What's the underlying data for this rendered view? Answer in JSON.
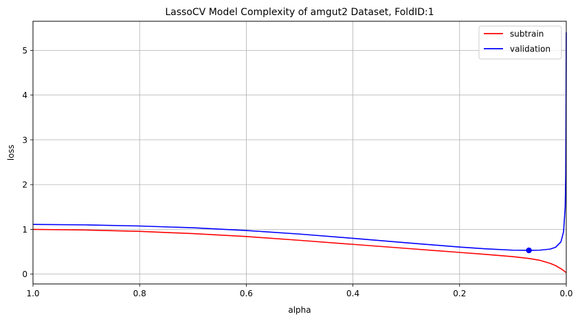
{
  "chart_data": {
    "type": "line",
    "title": "LassoCV Model Complexity of amgut2 Dataset, FoldID:1",
    "xlabel": "alpha",
    "ylabel": "loss",
    "xlim": [
      1.0,
      0.0
    ],
    "ylim": [
      -0.22,
      5.65
    ],
    "x_inverted": true,
    "grid": true,
    "legend_position": "top-right",
    "x_ticks": [
      1.0,
      0.8,
      0.6,
      0.4,
      0.2,
      0.0
    ],
    "x_tick_labels": [
      "1.0",
      "0.8",
      "0.6",
      "0.4",
      "0.2",
      "0.0"
    ],
    "y_ticks": [
      0,
      1,
      2,
      3,
      4,
      5
    ],
    "y_tick_labels": [
      "0",
      "1",
      "2",
      "3",
      "4",
      "5"
    ],
    "series": [
      {
        "name": "subtrain",
        "color": "#ff0000",
        "x": [
          1.0,
          0.9,
          0.8,
          0.7,
          0.6,
          0.5,
          0.4,
          0.3,
          0.2,
          0.15,
          0.1,
          0.07,
          0.05,
          0.03,
          0.02,
          0.01,
          0.005,
          0.0
        ],
        "y": [
          1.0,
          0.985,
          0.955,
          0.905,
          0.84,
          0.755,
          0.665,
          0.575,
          0.485,
          0.44,
          0.39,
          0.35,
          0.31,
          0.24,
          0.19,
          0.12,
          0.08,
          0.03
        ]
      },
      {
        "name": "validation",
        "color": "#0000ff",
        "x": [
          1.0,
          0.9,
          0.8,
          0.7,
          0.6,
          0.5,
          0.4,
          0.3,
          0.2,
          0.15,
          0.1,
          0.07,
          0.05,
          0.03,
          0.02,
          0.01,
          0.005,
          0.002,
          0.001,
          0.0005,
          0.0
        ],
        "y": [
          1.11,
          1.1,
          1.075,
          1.035,
          0.975,
          0.895,
          0.8,
          0.7,
          0.605,
          0.565,
          0.535,
          0.53,
          0.535,
          0.56,
          0.6,
          0.72,
          0.95,
          1.5,
          2.2,
          3.5,
          5.4
        ]
      }
    ],
    "markers": [
      {
        "series": "validation",
        "x": 0.07,
        "y": 0.53,
        "color": "#0000ff"
      }
    ]
  }
}
